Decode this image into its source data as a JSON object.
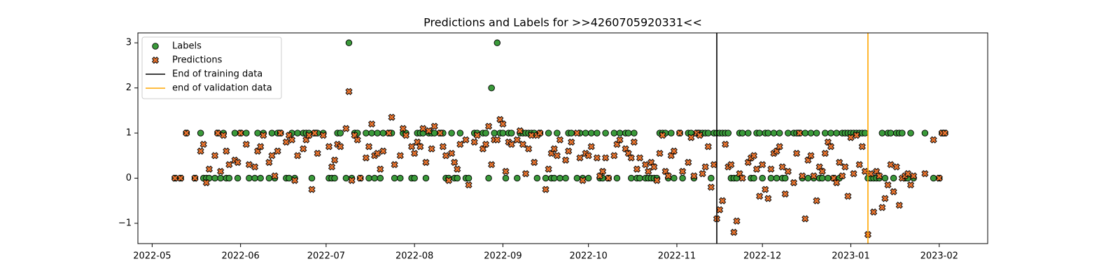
{
  "chart_data": {
    "type": "scatter",
    "title": "Predictions and Labels for >>4260705920331<<",
    "xlim": [
      "2022-04-26",
      "2023-02-18"
    ],
    "xticks": [
      "2022-05",
      "2022-06",
      "2022-07",
      "2022-08",
      "2022-09",
      "2022-10",
      "2022-11",
      "2022-12",
      "2023-01",
      "2023-02"
    ],
    "ylim": [
      -1.45,
      3.22
    ],
    "yticks": [
      {
        "value": -1,
        "label": "−1"
      },
      0,
      1,
      2,
      3
    ],
    "legend": "upper left",
    "x": [
      "2022-05-09",
      "2022-05-11",
      "2022-05-13",
      "2022-05-16",
      "2022-05-18",
      "2022-05-19",
      "2022-05-20",
      "2022-05-21",
      "2022-05-23",
      "2022-05-24",
      "2022-05-25",
      "2022-05-26",
      "2022-05-27",
      "2022-05-28",
      "2022-05-30",
      "2022-05-31",
      "2022-06-01",
      "2022-06-03",
      "2022-06-04",
      "2022-06-06",
      "2022-06-07",
      "2022-06-08",
      "2022-06-09",
      "2022-06-11",
      "2022-06-12",
      "2022-06-13",
      "2022-06-14",
      "2022-06-15",
      "2022-06-17",
      "2022-06-18",
      "2022-06-19",
      "2022-06-20",
      "2022-06-21",
      "2022-06-23",
      "2022-06-24",
      "2022-06-25",
      "2022-06-26",
      "2022-06-27",
      "2022-06-28",
      "2022-06-30",
      "2022-07-02",
      "2022-07-03",
      "2022-07-04",
      "2022-07-05",
      "2022-07-06",
      "2022-07-08",
      "2022-07-09",
      "2022-07-10",
      "2022-07-11",
      "2022-07-12",
      "2022-07-13",
      "2022-07-15",
      "2022-07-16",
      "2022-07-17",
      "2022-07-18",
      "2022-07-19",
      "2022-07-20",
      "2022-07-21",
      "2022-07-23",
      "2022-07-24",
      "2022-07-25",
      "2022-07-27",
      "2022-07-28",
      "2022-07-29",
      "2022-07-31",
      "2022-08-01",
      "2022-08-02",
      "2022-08-03",
      "2022-08-04",
      "2022-08-05",
      "2022-08-06",
      "2022-08-07",
      "2022-08-08",
      "2022-08-10",
      "2022-08-11",
      "2022-08-12",
      "2022-08-13",
      "2022-08-14",
      "2022-08-15",
      "2022-08-16",
      "2022-08-17",
      "2022-08-19",
      "2022-08-20",
      "2022-08-22",
      "2022-08-23",
      "2022-08-25",
      "2022-08-26",
      "2022-08-27",
      "2022-08-28",
      "2022-08-29",
      "2022-08-30",
      "2022-08-31",
      "2022-09-01",
      "2022-09-02",
      "2022-09-03",
      "2022-09-04",
      "2022-09-06",
      "2022-09-07",
      "2022-09-08",
      "2022-09-09",
      "2022-09-10",
      "2022-09-11",
      "2022-09-12",
      "2022-09-13",
      "2022-09-14",
      "2022-09-16",
      "2022-09-17",
      "2022-09-18",
      "2022-09-19",
      "2022-09-20",
      "2022-09-21",
      "2022-09-23",
      "2022-09-24",
      "2022-09-25",
      "2022-09-27",
      "2022-09-28",
      "2022-09-29",
      "2022-09-30",
      "2022-10-01",
      "2022-10-02",
      "2022-10-04",
      "2022-10-05",
      "2022-10-06",
      "2022-10-07",
      "2022-10-08",
      "2022-10-10",
      "2022-10-11",
      "2022-10-12",
      "2022-10-14",
      "2022-10-15",
      "2022-10-16",
      "2022-10-17",
      "2022-10-18",
      "2022-10-19",
      "2022-10-21",
      "2022-10-22",
      "2022-10-23",
      "2022-10-24",
      "2022-10-25",
      "2022-10-26",
      "2022-10-27",
      "2022-10-28",
      "2022-10-29",
      "2022-10-30",
      "2022-10-31",
      "2022-11-02",
      "2022-11-03",
      "2022-11-05",
      "2022-11-06",
      "2022-11-07",
      "2022-11-08",
      "2022-11-09",
      "2022-11-10",
      "2022-11-11",
      "2022-11-12",
      "2022-11-13",
      "2022-11-14",
      "2022-11-15",
      "2022-11-16",
      "2022-11-17",
      "2022-11-18",
      "2022-11-19",
      "2022-11-20",
      "2022-11-21",
      "2022-11-22",
      "2022-11-23",
      "2022-11-24",
      "2022-11-26",
      "2022-11-27",
      "2022-11-28",
      "2022-11-29",
      "2022-11-30",
      "2022-12-01",
      "2022-12-02",
      "2022-12-03",
      "2022-12-04",
      "2022-12-05",
      "2022-12-06",
      "2022-12-07",
      "2022-12-08",
      "2022-12-09",
      "2022-12-10",
      "2022-12-12",
      "2022-12-13",
      "2022-12-14",
      "2022-12-15",
      "2022-12-16",
      "2022-12-17",
      "2022-12-18",
      "2022-12-19",
      "2022-12-20",
      "2022-12-21",
      "2022-12-22",
      "2022-12-23",
      "2022-12-24",
      "2022-12-25",
      "2022-12-26",
      "2022-12-27",
      "2022-12-28",
      "2022-12-29",
      "2022-12-30",
      "2022-12-31",
      "2023-01-01",
      "2023-01-02",
      "2023-01-03",
      "2023-01-04",
      "2023-01-05",
      "2023-01-06",
      "2023-01-07",
      "2023-01-08",
      "2023-01-09",
      "2023-01-10",
      "2023-01-11",
      "2023-01-12",
      "2023-01-13",
      "2023-01-14",
      "2023-01-15",
      "2023-01-16",
      "2023-01-17",
      "2023-01-18",
      "2023-01-19",
      "2023-01-20",
      "2023-01-21",
      "2023-01-22",
      "2023-01-23",
      "2023-01-27",
      "2023-01-30",
      "2023-02-01",
      "2023-02-02",
      "2023-02-03"
    ],
    "series": [
      {
        "name": "Labels",
        "marker": "o",
        "color": "#3a9a3a",
        "values": [
          0,
          0,
          1,
          0,
          1,
          0,
          0,
          0,
          0,
          1,
          0,
          1,
          0,
          0,
          1,
          0,
          1,
          1,
          0,
          0,
          1,
          0,
          1,
          0,
          1,
          0,
          1,
          1,
          0,
          0,
          1,
          0,
          1,
          1,
          1,
          1,
          0,
          1,
          1,
          1,
          0,
          0,
          0,
          1,
          1,
          0,
          3,
          0,
          1,
          1,
          0,
          1,
          0,
          1,
          0,
          1,
          0,
          1,
          1,
          1,
          0,
          0,
          1,
          1,
          0,
          0,
          1,
          1,
          1,
          0,
          1,
          1,
          1,
          1,
          1,
          0,
          0,
          1,
          0,
          0,
          1,
          0,
          0,
          1,
          1,
          1,
          1,
          0,
          2,
          1,
          3,
          1,
          1,
          0,
          1,
          1,
          0,
          1,
          1,
          1,
          1,
          1,
          1,
          0,
          1,
          0,
          1,
          0,
          0,
          1,
          0,
          0,
          1,
          1,
          0,
          1,
          0,
          1,
          0,
          1,
          1,
          0,
          0,
          1,
          0,
          1,
          0,
          1,
          1,
          1,
          0,
          1,
          0,
          0,
          0,
          0,
          0,
          0,
          0,
          1,
          1,
          1,
          0,
          1,
          0,
          1,
          0,
          1,
          1,
          0,
          1,
          1,
          1,
          1,
          1,
          0,
          1,
          1,
          1,
          1,
          1,
          1,
          0,
          0,
          0,
          1,
          1,
          1,
          0,
          0,
          1,
          1,
          0,
          1,
          1,
          0,
          1,
          0,
          1,
          0,
          0,
          1,
          1,
          1,
          1,
          0,
          1,
          0,
          1,
          0,
          1,
          0,
          0,
          1,
          0,
          1,
          0,
          1,
          0,
          1,
          1,
          1,
          1,
          1,
          1,
          1,
          1,
          1,
          0,
          0,
          0,
          0,
          0,
          1,
          0,
          1,
          1,
          0,
          1,
          1,
          1,
          0,
          0,
          1,
          0,
          1,
          0,
          0,
          1,
          1
        ]
      },
      {
        "name": "Predictions",
        "marker": "X",
        "color": "#e8742f",
        "values": [
          0,
          0,
          1,
          0,
          0.6,
          0.75,
          -0.1,
          0.2,
          0.5,
          1,
          0.15,
          0.95,
          0.6,
          0.3,
          0.4,
          0.35,
          1,
          0.75,
          0.3,
          0.25,
          0.6,
          0.7,
          0.95,
          0.35,
          0.5,
          0.05,
          0.6,
          1,
          0.8,
          0.95,
          0.85,
          -0.05,
          0.5,
          0.65,
          0.85,
          0.95,
          -0.25,
          1,
          0.55,
          0.95,
          0.7,
          0.25,
          0.4,
          0.75,
          0.7,
          1.1,
          1.92,
          -0.05,
          0.95,
          0.85,
          0,
          0.45,
          0.7,
          1.2,
          0.5,
          0.55,
          0.2,
          0.6,
          1,
          1.35,
          0.3,
          0.5,
          1.1,
          0.95,
          0.7,
          0.55,
          0.8,
          0.7,
          1.1,
          0.35,
          1.05,
          0.65,
          1.15,
          1,
          0.7,
          0.5,
          -0.05,
          0.55,
          0.35,
          0.2,
          0.75,
          0.85,
          -0.15,
          0.8,
          0.95,
          0.65,
          0.75,
          1.15,
          0.3,
          0.85,
          0.85,
          1.3,
          1.2,
          0.15,
          0.8,
          0.75,
          0.85,
          1.05,
          0.75,
          0.1,
          0.65,
          0.95,
          0.35,
          0.95,
          1,
          -0.25,
          0.2,
          0.55,
          0.65,
          0.5,
          0.85,
          0.4,
          0.6,
          0.8,
          1,
          0.45,
          -0.05,
          0.55,
          0.5,
          0.7,
          0.45,
          0.05,
          0.15,
          0.45,
          0,
          0.5,
          0.75,
          0.85,
          0.65,
          0.55,
          0.45,
          0.8,
          0.2,
          0.45,
          0.3,
          0.15,
          0.35,
          0.25,
          -0.05,
          0.55,
          0.95,
          0.15,
          0.05,
          0.5,
          0.6,
          1,
          0.15,
          0.35,
          0.9,
          0.05,
          1,
          0.95,
          0.1,
          0.25,
          0.7,
          -0.2,
          0.3,
          -0.9,
          -0.7,
          -0.5,
          0.75,
          0.25,
          0.3,
          -1.2,
          -0.95,
          0.1,
          0,
          0.35,
          0.45,
          0.5,
          0.2,
          -0.4,
          0.3,
          -0.25,
          -0.45,
          0.2,
          0.55,
          0.6,
          0.7,
          0.25,
          -0.35,
          0.15,
          -0.1,
          0.55,
          1,
          0.05,
          -0.9,
          0.4,
          0.5,
          0.05,
          -0.5,
          0.25,
          0.15,
          0.55,
          0.8,
          0.7,
          0,
          -0.1,
          0.35,
          0.05,
          0.25,
          -0.4,
          0.9,
          0.1,
          0.95,
          0.3,
          0.7,
          0.15,
          -1.25,
          0.1,
          -0.75,
          0.15,
          0.05,
          -0.65,
          -0.45,
          -0.15,
          0.3,
          -0.3,
          0.25,
          -0.6,
          0,
          0.05,
          0.1,
          -0.15,
          0.05,
          0.1,
          0.85,
          0,
          1,
          1
        ]
      }
    ],
    "vlines": [
      {
        "name": "End of training data",
        "x": "2022-11-15",
        "color": "#000000"
      },
      {
        "name": "end of validation data",
        "x": "2023-01-07",
        "color": "#ffa500"
      }
    ]
  }
}
